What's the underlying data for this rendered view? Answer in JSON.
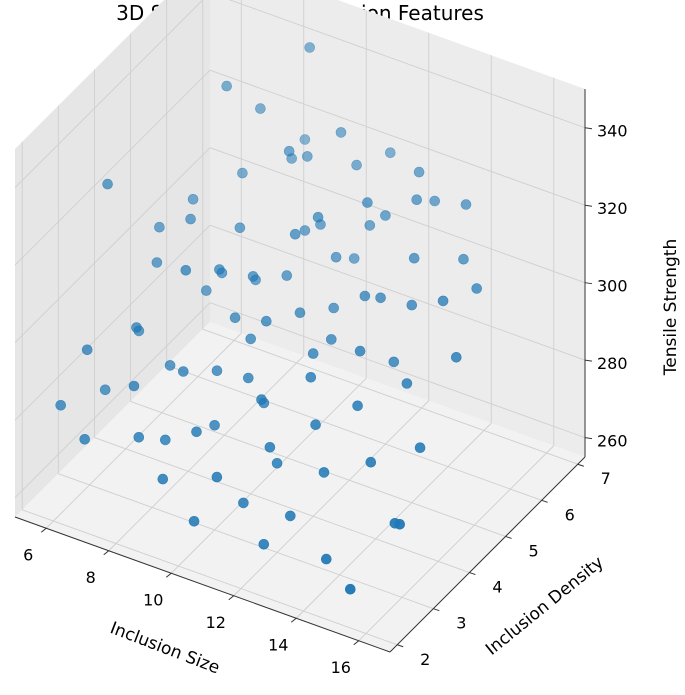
{
  "chart_data": {
    "type": "scatter",
    "title": "3D Surface Plot of Inclusion Features",
    "xlabel": "Inclusion Size",
    "ylabel": "Inclusion Density",
    "zlabel": "Tensile Strength",
    "xlim": [
      5,
      17
    ],
    "ylim": [
      1.8,
      7.2
    ],
    "zlim": [
      255,
      350
    ],
    "x_ticks": [
      "6",
      "8",
      "10",
      "12",
      "14",
      "16"
    ],
    "y_ticks": [
      "2",
      "3",
      "4",
      "5",
      "6",
      "7"
    ],
    "z_ticks": [
      "260",
      "280",
      "300",
      "320",
      "340"
    ],
    "grid": true,
    "marker_color": "#1f77b4",
    "points": [
      [
        7.5,
        5.5,
        339
      ],
      [
        9.0,
        6.5,
        344
      ],
      [
        8.0,
        6.0,
        330
      ],
      [
        9.5,
        5.5,
        328
      ],
      [
        6.0,
        3.5,
        328
      ],
      [
        8.5,
        3.5,
        313
      ],
      [
        9.0,
        4.0,
        310
      ],
      [
        10.5,
        4.8,
        316
      ],
      [
        11.0,
        5.0,
        320
      ],
      [
        12.0,
        5.5,
        322
      ],
      [
        13.0,
        6.0,
        321
      ],
      [
        14.0,
        6.5,
        318
      ],
      [
        15.5,
        5.5,
        310
      ],
      [
        16.0,
        4.5,
        303
      ],
      [
        15.0,
        5.0,
        310
      ],
      [
        13.5,
        4.0,
        302
      ],
      [
        12.5,
        3.5,
        297
      ],
      [
        11.5,
        3.0,
        293
      ],
      [
        10.5,
        4.0,
        301
      ],
      [
        9.5,
        4.5,
        305
      ],
      [
        8.5,
        5.0,
        310
      ],
      [
        7.5,
        4.5,
        314
      ],
      [
        7.0,
        4.0,
        306
      ],
      [
        7.5,
        3.0,
        300
      ],
      [
        8.0,
        2.5,
        291
      ],
      [
        9.0,
        3.0,
        293
      ],
      [
        10.0,
        2.5,
        285
      ],
      [
        11.0,
        2.2,
        279
      ],
      [
        12.0,
        2.8,
        284
      ],
      [
        13.0,
        3.2,
        289
      ],
      [
        14.0,
        3.5,
        294
      ],
      [
        15.0,
        3.0,
        287
      ],
      [
        16.5,
        2.5,
        280
      ],
      [
        16.0,
        3.5,
        289
      ],
      [
        6.5,
        2.5,
        296
      ],
      [
        6.0,
        2.2,
        283
      ],
      [
        6.5,
        3.0,
        281
      ],
      [
        7.0,
        2.0,
        279
      ],
      [
        8.5,
        2.2,
        282
      ],
      [
        9.5,
        2.0,
        276
      ],
      [
        10.5,
        3.5,
        291
      ],
      [
        11.0,
        4.5,
        300
      ],
      [
        12.0,
        4.0,
        297
      ],
      [
        13.0,
        5.0,
        305
      ],
      [
        11.5,
        6.0,
        310
      ],
      [
        10.5,
        6.5,
        318
      ],
      [
        9.5,
        6.0,
        322
      ],
      [
        8.5,
        6.8,
        316
      ],
      [
        10.0,
        5.5,
        309
      ],
      [
        11.0,
        5.5,
        305
      ],
      [
        12.5,
        5.0,
        304
      ],
      [
        13.5,
        5.5,
        312
      ],
      [
        14.5,
        6.0,
        310
      ],
      [
        12.5,
        6.5,
        322
      ],
      [
        11.0,
        7.0,
        318
      ],
      [
        10.0,
        5.0,
        302
      ],
      [
        9.0,
        5.0,
        298
      ],
      [
        8.0,
        4.5,
        297
      ],
      [
        7.0,
        3.5,
        293
      ],
      [
        8.0,
        3.5,
        287
      ],
      [
        9.0,
        2.5,
        280
      ],
      [
        10.0,
        3.0,
        282
      ],
      [
        11.0,
        3.5,
        286
      ],
      [
        12.0,
        3.0,
        278
      ],
      [
        13.0,
        2.5,
        272
      ],
      [
        14.5,
        2.2,
        268
      ],
      [
        15.5,
        2.0,
        265
      ],
      [
        12.5,
        2.2,
        266
      ],
      [
        11.5,
        2.5,
        271
      ],
      [
        10.5,
        2.0,
        268
      ],
      [
        9.5,
        3.5,
        290
      ],
      [
        10.5,
        5.5,
        312
      ],
      [
        12.0,
        6.0,
        314
      ],
      [
        13.0,
        6.5,
        316
      ],
      [
        14.0,
        5.0,
        306
      ],
      [
        15.0,
        4.0,
        298
      ],
      [
        16.0,
        2.8,
        276
      ],
      [
        7.0,
        5.0,
        313
      ],
      [
        6.5,
        4.5,
        309
      ],
      [
        8.0,
        5.5,
        318
      ],
      [
        9.0,
        6.0,
        320
      ],
      [
        10.0,
        6.5,
        325
      ],
      [
        11.5,
        5.0,
        298
      ],
      [
        12.0,
        4.5,
        296
      ],
      [
        13.5,
        3.0,
        280
      ],
      [
        14.0,
        4.5,
        296
      ],
      [
        10.0,
        4.0,
        295
      ],
      [
        9.5,
        4.0,
        299
      ],
      [
        8.5,
        4.5,
        303
      ],
      [
        11.0,
        6.0,
        300
      ]
    ]
  }
}
